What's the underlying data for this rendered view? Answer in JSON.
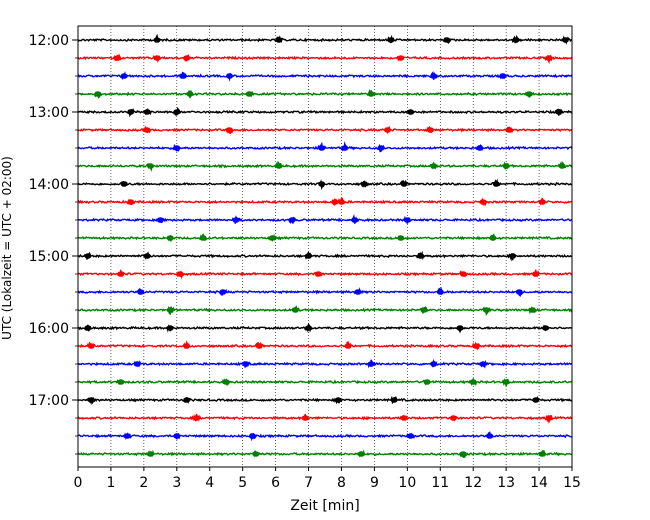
{
  "chart_data": {
    "type": "line",
    "title": "",
    "xlabel": "Zeit  [min]",
    "ylabel": "UTC (Lokalzeit = UTC + 02:00)",
    "xlim": [
      0,
      15
    ],
    "x_ticks": [
      "0",
      "1",
      "2",
      "3",
      "4",
      "5",
      "6",
      "7",
      "8",
      "9",
      "10",
      "11",
      "12",
      "13",
      "14",
      "15"
    ],
    "y_ticks": [
      {
        "label": "12:00",
        "trace": 0
      },
      {
        "label": "13:00",
        "trace": 4
      },
      {
        "label": "14:00",
        "trace": 8
      },
      {
        "label": "15:00",
        "trace": 12
      },
      {
        "label": "16:00",
        "trace": 16
      },
      {
        "label": "17:00",
        "trace": 20
      }
    ],
    "grid": {
      "vertical": true,
      "style": "dotted"
    },
    "colors": [
      "#000000",
      "#ff0000",
      "#0000ff",
      "#008000"
    ],
    "trace_count": 24,
    "minutes_per_trace": 15,
    "traces": [
      {
        "start": "12:00",
        "color": "#000000",
        "events": [
          6.1,
          2.4,
          9.5,
          11.2,
          13.3,
          14.8
        ]
      },
      {
        "start": "12:15",
        "color": "#ff0000",
        "events": [
          1.2,
          2.4,
          3.3,
          9.8,
          14.3
        ]
      },
      {
        "start": "12:30",
        "color": "#0000ff",
        "events": [
          1.4,
          3.2,
          10.8,
          4.6,
          12.9
        ]
      },
      {
        "start": "12:45",
        "color": "#008000",
        "events": [
          0.6,
          3.4,
          5.2,
          8.9,
          13.7
        ]
      },
      {
        "start": "13:00",
        "color": "#000000",
        "events": [
          1.6,
          2.1,
          3.0,
          10.1,
          14.6
        ]
      },
      {
        "start": "13:15",
        "color": "#ff0000",
        "events": [
          2.1,
          4.6,
          10.7,
          9.4,
          13.1
        ]
      },
      {
        "start": "13:30",
        "color": "#0000ff",
        "events": [
          3.0,
          8.1,
          7.4,
          9.2,
          12.2
        ]
      },
      {
        "start": "13:45",
        "color": "#008000",
        "events": [
          2.2,
          6.1,
          10.8,
          13.0,
          14.7
        ]
      },
      {
        "start": "14:00",
        "color": "#000000",
        "events": [
          1.4,
          7.4,
          8.7,
          9.9,
          12.7
        ]
      },
      {
        "start": "14:15",
        "color": "#ff0000",
        "events": [
          1.6,
          7.8,
          8.0,
          12.3,
          14.1
        ]
      },
      {
        "start": "14:30",
        "color": "#0000ff",
        "events": [
          2.5,
          4.8,
          6.5,
          8.4,
          10.0
        ]
      },
      {
        "start": "14:45",
        "color": "#008000",
        "events": [
          2.8,
          3.8,
          5.9,
          9.8,
          12.6
        ]
      },
      {
        "start": "15:00",
        "color": "#000000",
        "events": [
          0.3,
          2.1,
          7.0,
          10.4,
          13.2
        ]
      },
      {
        "start": "15:15",
        "color": "#ff0000",
        "events": [
          1.3,
          3.1,
          7.3,
          11.7,
          13.9
        ]
      },
      {
        "start": "15:30",
        "color": "#0000ff",
        "events": [
          1.9,
          4.4,
          8.5,
          11.0,
          13.4
        ]
      },
      {
        "start": "15:45",
        "color": "#008000",
        "events": [
          2.8,
          6.6,
          10.5,
          12.4,
          13.8
        ]
      },
      {
        "start": "16:00",
        "color": "#000000",
        "events": [
          0.3,
          2.8,
          7.0,
          11.6,
          14.2
        ]
      },
      {
        "start": "16:15",
        "color": "#ff0000",
        "events": [
          0.4,
          3.3,
          5.5,
          8.2,
          12.1
        ]
      },
      {
        "start": "16:30",
        "color": "#0000ff",
        "events": [
          1.8,
          5.1,
          8.9,
          10.8,
          12.3
        ]
      },
      {
        "start": "16:45",
        "color": "#008000",
        "events": [
          1.3,
          4.5,
          10.6,
          12.0,
          13.0
        ]
      },
      {
        "start": "17:00",
        "color": "#000000",
        "events": [
          0.4,
          3.3,
          7.9,
          9.6,
          13.9
        ]
      },
      {
        "start": "17:15",
        "color": "#ff0000",
        "events": [
          3.6,
          6.9,
          9.9,
          11.4,
          14.3
        ]
      },
      {
        "start": "17:30",
        "color": "#0000ff",
        "events": [
          1.5,
          3.0,
          5.3,
          10.1,
          12.5
        ]
      },
      {
        "start": "17:45",
        "color": "#008000",
        "events": [
          2.2,
          5.4,
          8.6,
          11.7,
          14.1
        ]
      }
    ]
  }
}
